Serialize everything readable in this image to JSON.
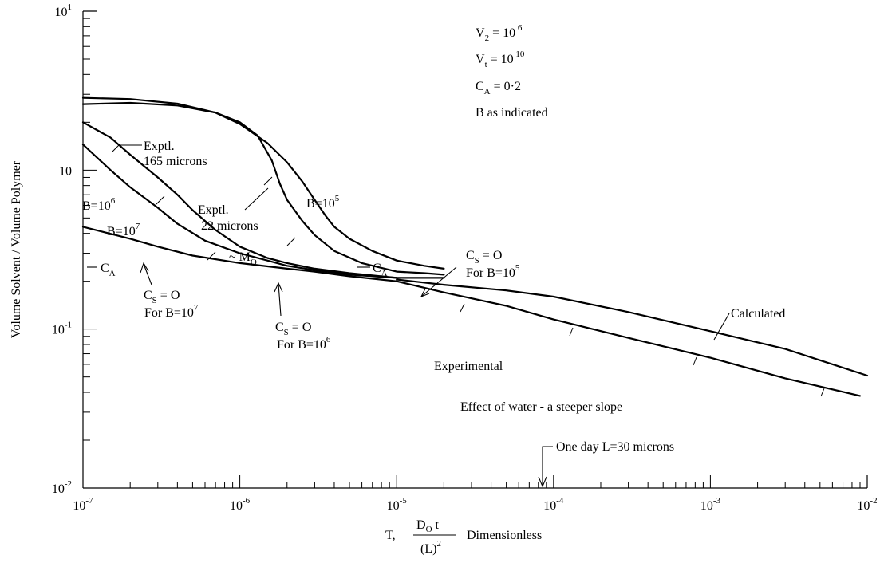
{
  "chart_data": {
    "type": "line",
    "x_scale": "log",
    "y_scale": "log",
    "xlim": [
      1e-07,
      0.01
    ],
    "ylim": [
      0.01,
      10
    ],
    "grid": false,
    "x_ticks": [
      {
        "value": 1e-07,
        "base": "10",
        "exp": "-7"
      },
      {
        "value": 1e-06,
        "base": "10",
        "exp": "-6"
      },
      {
        "value": 1e-05,
        "base": "10",
        "exp": "-5"
      },
      {
        "value": 0.0001,
        "base": "10",
        "exp": "-4"
      },
      {
        "value": 0.001,
        "base": "10",
        "exp": "-3"
      },
      {
        "value": 0.01,
        "base": "10",
        "exp": "-2"
      }
    ],
    "y_ticks": [
      {
        "value": 10,
        "base": "10",
        "exp": "1"
      },
      {
        "value": 1,
        "base": "10",
        "exp": ""
      },
      {
        "value": 0.1,
        "base": "10",
        "exp": "-1"
      },
      {
        "value": 0.01,
        "base": "10",
        "exp": "-2"
      }
    ],
    "ylabel": "Volume Solvent / Volume Polymer",
    "xlabel": {
      "prefix": "T,",
      "num_main": "D",
      "num_sub": "O",
      "num_tail": " t",
      "den": "(L)",
      "den_sup": "2",
      "suffix": "Dimensionless"
    },
    "legend_block": [
      {
        "main": "V",
        "sub": "2",
        "rest": " = 10",
        "sup": " 6"
      },
      {
        "main": "V",
        "sub": "t",
        "rest": " = 10",
        "sup": " 10"
      },
      {
        "main": "C",
        "sub": "A",
        "rest": " = 0·2",
        "sup": ""
      },
      {
        "main": "B  as indicated",
        "sub": "",
        "rest": "",
        "sup": ""
      }
    ],
    "series": [
      {
        "id": "b1e5",
        "points": [
          [
            1e-07,
            2.85
          ],
          [
            2e-07,
            2.8
          ],
          [
            4e-07,
            2.62
          ],
          [
            7e-07,
            2.3
          ],
          [
            1e-06,
            1.95
          ],
          [
            1.5e-06,
            1.48
          ],
          [
            2e-06,
            1.12
          ],
          [
            2.5e-06,
            0.85
          ],
          [
            3e-06,
            0.65
          ],
          [
            3.5e-06,
            0.52
          ],
          [
            4e-06,
            0.44
          ],
          [
            5e-06,
            0.37
          ],
          [
            7e-06,
            0.31
          ],
          [
            1e-05,
            0.27
          ],
          [
            1.5e-05,
            0.25
          ],
          [
            2e-05,
            0.24
          ]
        ]
      },
      {
        "id": "expt22",
        "points": [
          [
            1e-07,
            2.6
          ],
          [
            2e-07,
            2.65
          ],
          [
            4e-07,
            2.55
          ],
          [
            7e-07,
            2.3
          ],
          [
            1e-06,
            2.0
          ],
          [
            1.3e-06,
            1.65
          ],
          [
            1.6e-06,
            1.15
          ],
          [
            1.8e-06,
            0.82
          ],
          [
            2e-06,
            0.65
          ],
          [
            2.5e-06,
            0.48
          ],
          [
            3e-06,
            0.39
          ],
          [
            4e-06,
            0.31
          ],
          [
            6e-06,
            0.26
          ],
          [
            1e-05,
            0.23
          ],
          [
            1.5e-05,
            0.225
          ],
          [
            2e-05,
            0.22
          ]
        ]
      },
      {
        "id": "expt165",
        "points": [
          [
            1e-07,
            2.0
          ],
          [
            1.5e-07,
            1.6
          ],
          [
            2e-07,
            1.25
          ],
          [
            3e-07,
            0.9
          ],
          [
            4e-07,
            0.7
          ],
          [
            5e-07,
            0.56
          ],
          [
            7e-07,
            0.42
          ],
          [
            1e-06,
            0.33
          ],
          [
            1.5e-06,
            0.28
          ],
          [
            2e-06,
            0.26
          ],
          [
            3e-06,
            0.24
          ],
          [
            5e-06,
            0.225
          ],
          [
            1e-05,
            0.21
          ],
          [
            2e-05,
            0.21
          ]
        ]
      },
      {
        "id": "b1e6",
        "points": [
          [
            1e-07,
            1.45
          ],
          [
            1.5e-07,
            1.0
          ],
          [
            2e-07,
            0.78
          ],
          [
            3e-07,
            0.58
          ],
          [
            4e-07,
            0.46
          ],
          [
            6e-07,
            0.36
          ],
          [
            1e-06,
            0.3
          ],
          [
            1.5e-06,
            0.27
          ],
          [
            2e-06,
            0.25
          ],
          [
            3e-06,
            0.235
          ],
          [
            5e-06,
            0.22
          ],
          [
            1e-05,
            0.21
          ]
        ]
      },
      {
        "id": "b1e7",
        "points": [
          [
            1e-07,
            0.44
          ],
          [
            2e-07,
            0.37
          ],
          [
            3e-07,
            0.33
          ],
          [
            5e-07,
            0.29
          ],
          [
            1e-06,
            0.26
          ],
          [
            2e-06,
            0.24
          ],
          [
            3e-06,
            0.23
          ],
          [
            5e-06,
            0.215
          ],
          [
            1e-05,
            0.2
          ]
        ]
      },
      {
        "id": "calculated",
        "name": "Calculated",
        "points": [
          [
            1e-05,
            0.205
          ],
          [
            2e-05,
            0.19
          ],
          [
            5e-05,
            0.175
          ],
          [
            0.0001,
            0.16
          ],
          [
            0.0003,
            0.128
          ],
          [
            0.001,
            0.097
          ],
          [
            0.003,
            0.075
          ],
          [
            0.01,
            0.051
          ]
        ]
      },
      {
        "id": "experimental",
        "name": "Experimental",
        "points": [
          [
            1e-05,
            0.2
          ],
          [
            2e-05,
            0.17
          ],
          [
            5e-05,
            0.14
          ],
          [
            0.0001,
            0.115
          ],
          [
            0.0003,
            0.088
          ],
          [
            0.001,
            0.066
          ],
          [
            0.003,
            0.049
          ],
          [
            0.009,
            0.038
          ]
        ]
      }
    ],
    "annotations": [
      {
        "text": "Exptl.",
        "line2": "165 microns"
      },
      {
        "text": "Exptl.",
        "line2": "22 microns"
      },
      {
        "main": "B=10",
        "sup": "5"
      },
      {
        "main": "B=10",
        "sup": "6"
      },
      {
        "main": "B=10",
        "sup": "7"
      },
      {
        "main": "C",
        "sub": "A"
      },
      {
        "main": "C",
        "sub": "A"
      },
      {
        "main": "~ M",
        "sub": "O"
      },
      {
        "main": "C",
        "sub": "S",
        "rest": " = O",
        "line2": "For  B=10",
        "line2_sup": "5"
      },
      {
        "main": "C",
        "sub": "S",
        "rest": " = O",
        "line2": "For  B=10",
        "line2_sup": "6"
      },
      {
        "main": "C",
        "sub": "S",
        "rest": " = O",
        "line2": "For  B=10",
        "line2_sup": "7"
      },
      {
        "text": "Calculated"
      },
      {
        "text": "Experimental"
      },
      {
        "text": "Effect of water - a steeper slope"
      },
      {
        "text": "One day L=30 microns"
      }
    ]
  }
}
